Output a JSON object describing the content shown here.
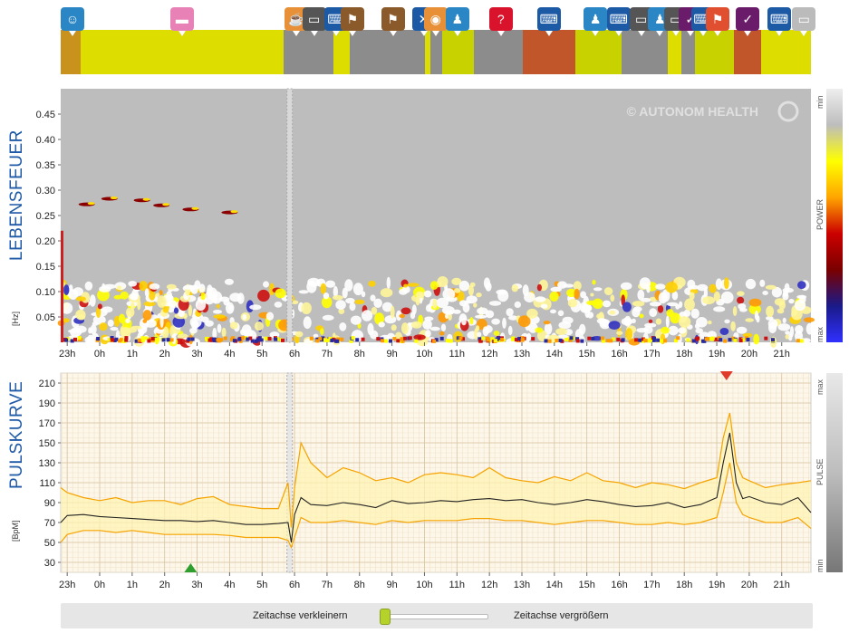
{
  "activity_strip": {
    "segments": [
      {
        "color": "#c8921c",
        "start": 0,
        "end": 0.027
      },
      {
        "color": "#dddd00",
        "start": 0.027,
        "end": 0.297
      },
      {
        "color": "#8c8c8c",
        "start": 0.297,
        "end": 0.363
      },
      {
        "color": "#dddd00",
        "start": 0.363,
        "end": 0.385
      },
      {
        "color": "#8c8c8c",
        "start": 0.385,
        "end": 0.486
      },
      {
        "color": "#dddd00",
        "start": 0.486,
        "end": 0.493
      },
      {
        "color": "#8c8c8c",
        "start": 0.493,
        "end": 0.508
      },
      {
        "color": "#c8d200",
        "start": 0.508,
        "end": 0.551
      },
      {
        "color": "#8c8c8c",
        "start": 0.551,
        "end": 0.616
      },
      {
        "color": "#c0562a",
        "start": 0.616,
        "end": 0.686
      },
      {
        "color": "#c8d200",
        "start": 0.686,
        "end": 0.748
      },
      {
        "color": "#8c8c8c",
        "start": 0.748,
        "end": 0.809
      },
      {
        "color": "#dddd00",
        "start": 0.809,
        "end": 0.827
      },
      {
        "color": "#8c8c8c",
        "start": 0.827,
        "end": 0.846
      },
      {
        "color": "#c8d200",
        "start": 0.846,
        "end": 0.897
      },
      {
        "color": "#c0562a",
        "start": 0.897,
        "end": 0.934
      },
      {
        "color": "#dddd00",
        "start": 0.934,
        "end": 1.0
      }
    ],
    "icons": [
      {
        "name": "brain-icon",
        "glyph": "☺",
        "color": "#2b86c5",
        "pos": 0.0
      },
      {
        "name": "bed-icon",
        "glyph": "▬",
        "color": "#e882b6",
        "pos": 0.146
      },
      {
        "name": "meal-icon",
        "glyph": "☕",
        "color": "#e89038",
        "pos": 0.298
      },
      {
        "name": "car-icon",
        "glyph": "▭",
        "color": "#555555",
        "pos": 0.322
      },
      {
        "name": "keyboard-icon",
        "glyph": "⌨",
        "color": "#1c5aa6",
        "pos": 0.352
      },
      {
        "name": "hiking-icon",
        "glyph": "⚑",
        "color": "#8a5a2a",
        "pos": 0.373
      },
      {
        "name": "hiking-icon-2",
        "glyph": "⚑",
        "color": "#8a5a2a",
        "pos": 0.427
      },
      {
        "name": "cutlery-icon",
        "glyph": "✕",
        "color": "#1c5aa6",
        "pos": 0.468
      },
      {
        "name": "meal-icon-2",
        "glyph": "◉",
        "color": "#e89038",
        "pos": 0.484
      },
      {
        "name": "meeting-icon",
        "glyph": "♟",
        "color": "#2b86c5",
        "pos": 0.513
      },
      {
        "name": "question-icon",
        "glyph": "?",
        "color": "#d8132b",
        "pos": 0.571
      },
      {
        "name": "keyboard-icon-2",
        "glyph": "⌨",
        "color": "#1c5aa6",
        "pos": 0.635
      },
      {
        "name": "meeting-icon-2",
        "glyph": "♟",
        "color": "#2b86c5",
        "pos": 0.697
      },
      {
        "name": "keyboard-icon-3",
        "glyph": "⌨",
        "color": "#1c5aa6",
        "pos": 0.728
      },
      {
        "name": "car-icon-2",
        "glyph": "▭",
        "color": "#555555",
        "pos": 0.758
      },
      {
        "name": "meeting-icon-3",
        "glyph": "♟",
        "color": "#2b86c5",
        "pos": 0.783
      },
      {
        "name": "car-icon-3",
        "glyph": "▭",
        "color": "#555555",
        "pos": 0.804
      },
      {
        "name": "relax-icon",
        "glyph": "✓",
        "color": "#6a1b6a",
        "pos": 0.824
      },
      {
        "name": "keyboard-icon-4",
        "glyph": "⌨",
        "color": "#1c5aa6",
        "pos": 0.84
      },
      {
        "name": "walking-icon",
        "glyph": "⚑",
        "color": "#e05030",
        "pos": 0.86
      },
      {
        "name": "relax-icon-2",
        "glyph": "✓",
        "color": "#6a1b6a",
        "pos": 0.9
      },
      {
        "name": "keyboard-icon-5",
        "glyph": "⌨",
        "color": "#1c5aa6",
        "pos": 0.942
      },
      {
        "name": "monitor-icon",
        "glyph": "▭",
        "color": "#bbbbbb",
        "pos": 0.975
      }
    ]
  },
  "chart_data": [
    {
      "type": "heatmap",
      "title": "LEBENSFEUER",
      "ylabel": "[Hz]",
      "yticks": [
        "0.45",
        "0.40",
        "0.35",
        "0.30",
        "0.25",
        "0.20",
        "0.15",
        "0.10",
        "0.05"
      ],
      "ytick_values": [
        0.45,
        0.4,
        0.35,
        0.3,
        0.25,
        0.2,
        0.15,
        0.1,
        0.05
      ],
      "ylim": [
        0,
        0.5
      ],
      "xticks": [
        "23h",
        "0h",
        "1h",
        "2h",
        "3h",
        "4h",
        "5h",
        "6h",
        "7h",
        "8h",
        "9h",
        "10h",
        "11h",
        "12h",
        "13h",
        "14h",
        "15h",
        "16h",
        "17h",
        "18h",
        "19h",
        "20h",
        "21h"
      ],
      "x_start_hour": 22.8,
      "x_end_hour": 45.9,
      "watermark": "© AUTONOM HEALTH",
      "colorbar": {
        "label": "POWER",
        "top": "min",
        "bottom": "max",
        "colors": [
          "#eeeeee",
          "#bdbdbd",
          "#ffff00",
          "#ffa500",
          "#cc0000",
          "#7a0000",
          "#1a1a8a",
          "#3030ff"
        ]
      }
    },
    {
      "type": "line",
      "title": "PULSKURVE",
      "ylabel": "[BpM]",
      "yticks": [
        "210",
        "190",
        "170",
        "150",
        "130",
        "110",
        "90",
        "70",
        "50",
        "30"
      ],
      "ytick_values": [
        210,
        190,
        170,
        150,
        130,
        110,
        90,
        70,
        50,
        30
      ],
      "ylim": [
        20,
        220
      ],
      "xticks": [
        "23h",
        "0h",
        "1h",
        "2h",
        "3h",
        "4h",
        "5h",
        "6h",
        "7h",
        "8h",
        "9h",
        "10h",
        "11h",
        "12h",
        "13h",
        "14h",
        "15h",
        "16h",
        "17h",
        "18h",
        "19h",
        "20h",
        "21h"
      ],
      "x_start_hour": 22.8,
      "x_end_hour": 45.9,
      "series": [
        {
          "values_hours": [
            22.8,
            23.0,
            23.5,
            24.0,
            24.5,
            25.0,
            25.5,
            26.0,
            26.5,
            27.0,
            27.5,
            28.0,
            28.5,
            29.0,
            29.5,
            29.8,
            29.9,
            30.0,
            30.2,
            30.5,
            31.0,
            31.5,
            32.0,
            32.5,
            33.0,
            33.5,
            34.0,
            34.5,
            35.0,
            35.5,
            36.0,
            36.5,
            37.0,
            37.5,
            38.0,
            38.5,
            39.0,
            39.5,
            40.0,
            40.5,
            41.0,
            41.5,
            42.0,
            42.5,
            43.0,
            43.2,
            43.4,
            43.6,
            43.8,
            44.0,
            44.5,
            45.0,
            45.5,
            45.9
          ],
          "mid": [
            70,
            77,
            78,
            76,
            75,
            74,
            73,
            72,
            72,
            71,
            72,
            70,
            68,
            68,
            69,
            70,
            50,
            78,
            95,
            88,
            87,
            90,
            88,
            85,
            92,
            89,
            90,
            92,
            91,
            93,
            94,
            92,
            93,
            90,
            88,
            90,
            93,
            91,
            88,
            86,
            87,
            90,
            85,
            88,
            95,
            130,
            160,
            110,
            94,
            96,
            90,
            88,
            95,
            80
          ],
          "upper": [
            105,
            100,
            95,
            92,
            95,
            90,
            92,
            92,
            88,
            94,
            96,
            88,
            86,
            84,
            84,
            110,
            65,
            105,
            150,
            130,
            115,
            125,
            120,
            112,
            115,
            110,
            118,
            120,
            118,
            115,
            125,
            115,
            112,
            110,
            116,
            112,
            120,
            112,
            110,
            105,
            110,
            108,
            104,
            110,
            115,
            155,
            180,
            130,
            115,
            112,
            105,
            108,
            110,
            112
          ],
          "lower": [
            50,
            58,
            62,
            62,
            60,
            62,
            60,
            58,
            58,
            58,
            58,
            57,
            55,
            55,
            55,
            52,
            45,
            55,
            75,
            70,
            70,
            72,
            70,
            68,
            72,
            70,
            72,
            72,
            72,
            74,
            74,
            72,
            72,
            70,
            68,
            70,
            72,
            72,
            70,
            68,
            68,
            70,
            68,
            70,
            75,
            100,
            130,
            90,
            78,
            75,
            70,
            70,
            75,
            64
          ]
        }
      ],
      "markers": [
        {
          "type": "min",
          "color": "#2e9e2e",
          "hour": 26.8
        },
        {
          "type": "max",
          "color": "#e03a2a",
          "hour": 43.3
        }
      ],
      "colorbar": {
        "label": "PULSE",
        "top": "max",
        "bottom": "min"
      }
    }
  ],
  "zoom": {
    "zoom_out_label": "Zeitachse verkleinern",
    "zoom_in_label": "Zeitachse vergrößern",
    "slider_value": 0.0
  }
}
